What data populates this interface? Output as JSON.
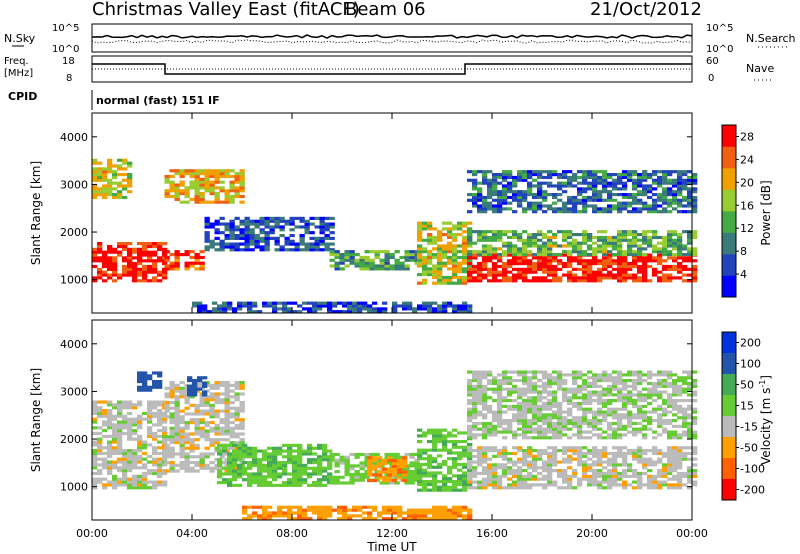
{
  "header": {
    "title": "Christmas Valley East (fitACF)",
    "beam": "Beam 06",
    "date": "21/Oct/2012"
  },
  "panels": {
    "nsky": {
      "label": "N.Sky",
      "right_label": "N.Search",
      "ticks": [
        "10^5",
        "10^0"
      ]
    },
    "freq": {
      "label_line1": "Freq.",
      "label_line2": "[MHz]",
      "left_ticks": [
        "18",
        "8"
      ],
      "right_ticks": [
        "60",
        "0"
      ],
      "right_label": "Nave"
    },
    "cpid": {
      "label": "CPID",
      "text": "normal (fast) 151 IF"
    }
  },
  "chart_data": [
    {
      "type": "heatmap",
      "name": "power",
      "xlabel": "Time UT",
      "ylabel": "Slant Range [km]",
      "x_ticks": [
        "00:00",
        "04:00",
        "08:00",
        "12:00",
        "16:00",
        "20:00",
        "00:00"
      ],
      "xlim_hours": [
        0,
        24
      ],
      "ylim": [
        300,
        4500
      ],
      "y_ticks": [
        1000,
        2000,
        3000,
        4000
      ],
      "colorbar": {
        "label": "Power [dB]",
        "ticks": [
          4,
          8,
          12,
          16,
          20,
          24,
          28
        ],
        "range": [
          0,
          30
        ],
        "colors": [
          "#0000ff",
          "#2244bb",
          "#3a7a7a",
          "#44aa44",
          "#99cc33",
          "#f0a000",
          "#f06010",
          "#ff0000"
        ]
      },
      "echo_bands": [
        {
          "t": [
            0.0,
            2.9
          ],
          "range_km": [
            950,
            1750
          ],
          "power_db": 28
        },
        {
          "t": [
            0.0,
            1.5
          ],
          "range_km": [
            2700,
            3500
          ],
          "power_db": 18
        },
        {
          "t": [
            2.9,
            6.0
          ],
          "range_km": [
            2600,
            3300
          ],
          "power_db": 20
        },
        {
          "t": [
            2.9,
            4.5
          ],
          "range_km": [
            1200,
            1600
          ],
          "power_db": 26
        },
        {
          "t": [
            4.5,
            9.5
          ],
          "range_km": [
            1600,
            2300
          ],
          "power_db": 6
        },
        {
          "t": [
            9.5,
            13.0
          ],
          "range_km": [
            1200,
            1600
          ],
          "power_db": 12
        },
        {
          "t": [
            13.0,
            15.0
          ],
          "range_km": [
            900,
            2200
          ],
          "power_db": 18
        },
        {
          "t": [
            15.0,
            24.0
          ],
          "range_km": [
            950,
            1500
          ],
          "power_db": 28
        },
        {
          "t": [
            15.0,
            24.0
          ],
          "range_km": [
            1500,
            2000
          ],
          "power_db": 14
        },
        {
          "t": [
            15.0,
            24.0
          ],
          "range_km": [
            2400,
            3300
          ],
          "power_db": 8
        },
        {
          "t": [
            4.0,
            15.0
          ],
          "range_km": [
            300,
            500
          ],
          "power_db": 6
        }
      ]
    },
    {
      "type": "heatmap",
      "name": "velocity",
      "xlabel": "Time UT",
      "ylabel": "Slant Range [km]",
      "x_ticks": [
        "00:00",
        "04:00",
        "08:00",
        "12:00",
        "16:00",
        "20:00",
        "00:00"
      ],
      "xlim_hours": [
        0,
        24
      ],
      "ylim": [
        300,
        4500
      ],
      "y_ticks": [
        1000,
        2000,
        3000,
        4000
      ],
      "colorbar": {
        "label_main": "Velocity [m s",
        "label_sup": "-1",
        "label_end": "]",
        "ticks": [
          200,
          100,
          50,
          15,
          -15,
          -50,
          -100,
          -200
        ],
        "colors": [
          "#0033dd",
          "#2255aa",
          "#44aa55",
          "#66cc33",
          "#bbbbbb",
          "#ffa000",
          "#ff6000",
          "#ff0000"
        ]
      },
      "echo_bands": [
        {
          "t": [
            0.0,
            2.9
          ],
          "range_km": [
            950,
            2800
          ],
          "velocity": 0
        },
        {
          "t": [
            1.8,
            2.8
          ],
          "range_km": [
            3000,
            3400
          ],
          "velocity": 180
        },
        {
          "t": [
            2.9,
            6.0
          ],
          "range_km": [
            1300,
            3200
          ],
          "velocity": 0
        },
        {
          "t": [
            3.8,
            4.6
          ],
          "range_km": [
            2900,
            3300
          ],
          "velocity": 180
        },
        {
          "t": [
            5.0,
            9.5
          ],
          "range_km": [
            1000,
            1900
          ],
          "velocity": 40
        },
        {
          "t": [
            9.5,
            13.0
          ],
          "range_km": [
            1050,
            1700
          ],
          "velocity": 30
        },
        {
          "t": [
            11.0,
            12.5
          ],
          "range_km": [
            1100,
            1600
          ],
          "velocity": -40
        },
        {
          "t": [
            13.0,
            15.0
          ],
          "range_km": [
            900,
            2200
          ],
          "velocity": 40
        },
        {
          "t": [
            15.0,
            24.0
          ],
          "range_km": [
            950,
            1800
          ],
          "velocity": 0
        },
        {
          "t": [
            15.0,
            24.0
          ],
          "range_km": [
            2000,
            3400
          ],
          "velocity": 10
        },
        {
          "t": [
            6.0,
            15.0
          ],
          "range_km": [
            300,
            600
          ],
          "velocity": -40
        }
      ]
    }
  ]
}
